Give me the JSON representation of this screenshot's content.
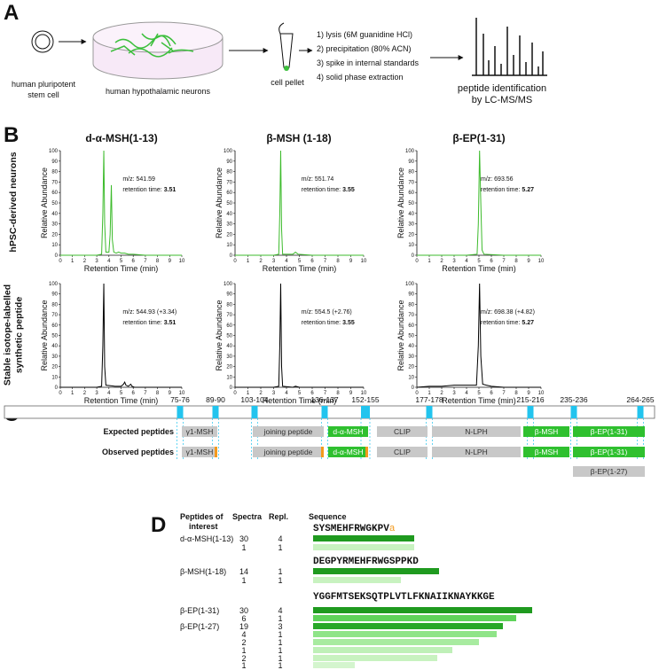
{
  "panel_a": {
    "letter": "A",
    "stem_cell": [
      "human pluripotent",
      "stem cell"
    ],
    "neurons": "human hypothalamic neurons",
    "pellet": "cell pellet",
    "steps": [
      "1) lysis (6M guanidine HCl)",
      "2) precipitation (80% ACN)",
      "3) spike in internal standards",
      "4) solid phase extraction"
    ],
    "result": [
      "peptide identification",
      "by LC-MS/MS"
    ]
  },
  "panel_b": {
    "letter": "B",
    "row_labels": [
      [
        "hPSC-derived neurons"
      ],
      [
        "Stable isotope-labelled",
        "synthetic peptide"
      ]
    ],
    "titles": [
      "d-α-MSH(1-13)",
      "β-MSH (1-18)",
      "β-EP(1-31)"
    ],
    "xlabel": "Retention Time (min)",
    "ylabel": "Relative Abundance",
    "rt_label": "retention time:",
    "xlim": [
      0,
      10
    ],
    "ylim": [
      0,
      100
    ],
    "xticks": [
      0,
      1,
      2,
      3,
      4,
      5,
      6,
      7,
      8,
      9,
      10
    ],
    "yticks": [
      0,
      10,
      20,
      30,
      40,
      50,
      60,
      70,
      80,
      90,
      100
    ],
    "charts": [
      {
        "mz": "m/z: 541.59",
        "rt": 3.51,
        "color": "#3dbb2c",
        "trace": {
          "x": [
            0,
            1,
            2,
            3,
            3.4,
            3.5,
            3.58,
            3.65,
            3.75,
            4.0,
            4.1,
            4.2,
            4.28,
            4.4,
            4.6,
            4.8,
            5.0,
            5.3,
            5.6,
            6.0,
            7,
            8,
            9,
            10
          ],
          "values": [
            0,
            0,
            0,
            0,
            1,
            40,
            100,
            30,
            3,
            3,
            20,
            67,
            15,
            3,
            2,
            3,
            2,
            2,
            1,
            1,
            0,
            0,
            0,
            0
          ]
        }
      },
      {
        "mz": "m/z: 551.74",
        "rt": 3.55,
        "color": "#3dbb2c",
        "trace": {
          "x": [
            0,
            1,
            2,
            3,
            3.4,
            3.48,
            3.55,
            3.62,
            3.7,
            4.5,
            4.7,
            4.9,
            6,
            8,
            10
          ],
          "values": [
            0,
            0,
            0,
            0,
            1,
            40,
            100,
            25,
            1,
            1,
            3,
            1,
            0,
            0,
            0
          ]
        }
      },
      {
        "mz": "m/z: 693.56",
        "rt": 5.27,
        "color": "#3dbb2c",
        "trace": {
          "x": [
            0,
            2,
            4,
            4.85,
            4.95,
            5.05,
            5.15,
            5.25,
            5.4,
            7,
            10
          ],
          "values": [
            0,
            0,
            0,
            1,
            30,
            100,
            50,
            5,
            1,
            0,
            0
          ]
        }
      },
      {
        "mz": "m/z: 544.93 (+3.34)",
        "rt": 3.51,
        "color": "#000000",
        "trace": {
          "x": [
            0,
            1,
            2,
            3,
            3.4,
            3.5,
            3.58,
            3.65,
            3.75,
            4.5,
            5.0,
            5.2,
            5.3,
            5.4,
            5.6,
            5.8,
            5.9,
            6.1,
            7,
            10
          ],
          "values": [
            0,
            0,
            0,
            0,
            1,
            40,
            100,
            20,
            2,
            1,
            1,
            3,
            5,
            2,
            1,
            3,
            1,
            0,
            0,
            0
          ]
        }
      },
      {
        "mz": "m/z: 554.5 (+2.76)",
        "rt": 3.55,
        "color": "#000000",
        "trace": {
          "x": [
            0,
            2,
            3,
            3.4,
            3.48,
            3.55,
            3.62,
            3.7,
            4.5,
            4.7,
            5,
            10
          ],
          "values": [
            0,
            0,
            0,
            1,
            40,
            100,
            20,
            1,
            0,
            1,
            0,
            0
          ]
        }
      },
      {
        "mz": "m/z: 698.38 (+4.82)",
        "rt": 5.27,
        "color": "#000000",
        "trace": {
          "x": [
            0,
            1,
            2,
            3,
            4,
            4.8,
            4.95,
            5.05,
            5.15,
            5.3,
            5.6,
            6,
            7,
            10
          ],
          "values": [
            0,
            1,
            1,
            2,
            2,
            2,
            40,
            100,
            30,
            3,
            2,
            1,
            0,
            0
          ]
        }
      }
    ]
  },
  "panel_c": {
    "letter": "C",
    "sites": [
      "75-76",
      "89-90",
      "103-104",
      "136-137",
      "152-155",
      "177-178",
      "215-216",
      "235-236",
      "264-265"
    ],
    "rows": [
      {
        "label": "Expected peptides",
        "segments": [
          {
            "name": "γ1-MSH",
            "color": "#c8c8c8"
          },
          {
            "name": "joining peptide",
            "color": "#c8c8c8"
          },
          {
            "name": "d-α-MSH",
            "color": "#2fc02f"
          },
          {
            "name": "CLIP",
            "color": "#c8c8c8"
          },
          {
            "name": "N-LPH",
            "color": "#c8c8c8"
          },
          {
            "name": "β-MSH",
            "color": "#2fc02f"
          },
          {
            "name": "β-EP(1-31)",
            "color": "#2fc02f"
          }
        ]
      },
      {
        "label": "Observed peptides",
        "segments": [
          {
            "name": "γ1-MSH",
            "color": "#c8c8c8"
          },
          {
            "name": "joining peptide",
            "color": "#c8c8c8"
          },
          {
            "name": "d-α-MSH",
            "color": "#2fc02f"
          },
          {
            "name": "CLIP",
            "color": "#c8c8c8"
          },
          {
            "name": "N-LPH",
            "color": "#c8c8c8"
          },
          {
            "name": "β-MSH",
            "color": "#2fc02f"
          },
          {
            "name": "β-EP(1-31)",
            "color": "#2fc02f"
          },
          {
            "name": "β-EP(1-27)",
            "color": "#c8c8c8"
          }
        ]
      }
    ]
  },
  "panel_d": {
    "letter": "D",
    "headers": [
      [
        "Peptides of",
        "interest"
      ],
      "Spectra",
      "Repl.",
      "Sequence"
    ],
    "groups": [
      {
        "sequence": "SYSMEHFRWGKPV",
        "modification": "a",
        "rows": [
          {
            "peptide": "d-α-MSH(1-13)",
            "spectra": 30,
            "replicates": 4
          },
          {
            "spectra": 1,
            "replicates": 1
          }
        ]
      },
      {
        "sequence": "DEGPYRMEHFRWGSPPKD",
        "rows": [
          {
            "peptide": "β-MSH(1-18)",
            "spectra": 14,
            "replicates": 1
          },
          {
            "spectra": 1,
            "replicates": 1
          }
        ]
      },
      {
        "sequence": "YGGFMTSEKSQTPLVTLFKNAIIKNAYKKGE",
        "rows": [
          {
            "peptide": "β-EP(1-31)",
            "spectra": 30,
            "replicates": 4
          },
          {
            "spectra": 6,
            "replicates": 1
          },
          {
            "peptide": "β-EP(1-27)",
            "spectra": 19,
            "replicates": 3
          },
          {
            "spectra": 4,
            "replicates": 1
          },
          {
            "spectra": 2,
            "replicates": 1
          },
          {
            "spectra": 1,
            "replicates": 1
          },
          {
            "spectra": 2,
            "replicates": 1
          },
          {
            "spectra": 1,
            "replicates": 1
          }
        ]
      }
    ]
  }
}
